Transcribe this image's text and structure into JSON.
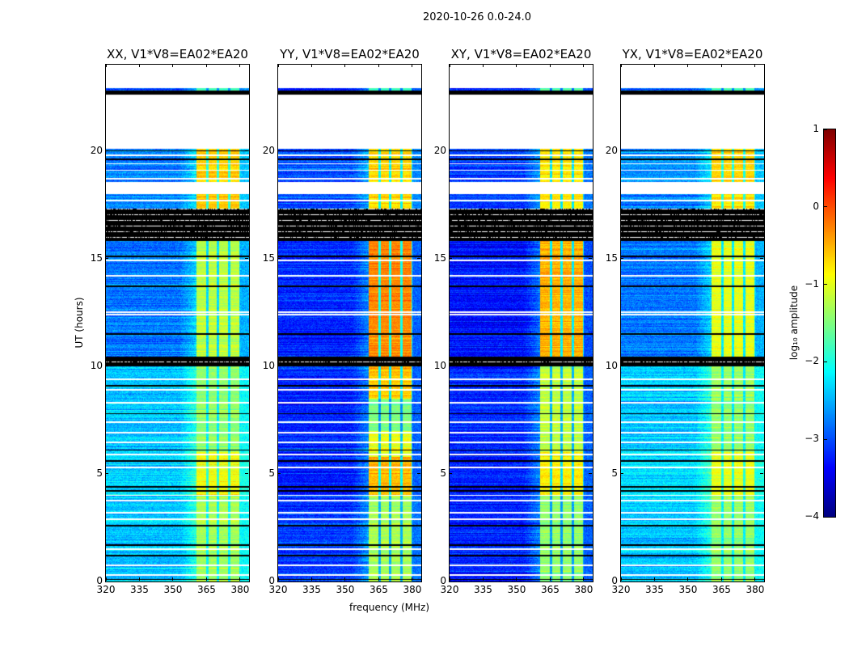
{
  "chart_data": {
    "type": "heatmap",
    "title": "2020-10-26 0.0-24.0",
    "xlabel": "frequency (MHz)",
    "ylabel": "UT (hours)",
    "xlim": [
      320,
      384
    ],
    "ylim": [
      0,
      24
    ],
    "xticks": [
      320,
      335,
      350,
      365,
      380
    ],
    "yticks": [
      0,
      5,
      10,
      15,
      20
    ],
    "colorbar": {
      "label": "log₁₀ amplitude",
      "range": [
        -4,
        1
      ],
      "ticks": [
        1,
        0,
        -1,
        -2,
        -3,
        -4
      ],
      "tick_labels": [
        "1",
        "0",
        "−1",
        "−2",
        "−3",
        "−4"
      ],
      "colormap": "jet"
    },
    "rfi_bands_mhz": [
      [
        360.5,
        364.8
      ],
      [
        365.9,
        369.5
      ],
      [
        370.6,
        374.6
      ],
      [
        375.6,
        379.6
      ]
    ],
    "time_segments": [
      [
        0,
        10.0,
        "data"
      ],
      [
        10.0,
        10.45,
        "flag"
      ],
      [
        10.45,
        15.8,
        "data"
      ],
      [
        15.8,
        17.3,
        "flag"
      ],
      [
        17.3,
        18.0,
        "data"
      ],
      [
        18.0,
        18.55,
        "gap"
      ],
      [
        18.55,
        20.1,
        "data"
      ],
      [
        20.1,
        22.6,
        "gap"
      ],
      [
        22.6,
        22.8,
        "flag"
      ],
      [
        22.8,
        22.9,
        "data"
      ],
      [
        22.9,
        24,
        "gap"
      ]
    ],
    "white_line_hours": [
      0.3,
      0.75,
      1.5,
      2.9,
      3.2,
      3.75,
      4.0,
      5.3,
      5.9,
      6.45,
      6.9,
      7.4,
      8.3,
      8.9,
      9.4,
      12.4,
      12.5,
      14.2,
      14.9,
      16.0,
      16.6,
      17.05,
      17.7,
      18.7,
      19.1,
      19.4,
      19.8
    ],
    "black_line_hours": [
      0.1,
      1.2,
      1.7,
      2.6,
      4.2,
      4.4,
      5.6,
      6.1,
      7.8,
      9.1,
      11.5,
      13.7,
      15.1,
      19.6,
      20.0
    ],
    "panels": [
      {
        "title": "XX, V1*V8=EA02*EA20",
        "levels": [
          [
            0,
            4,
            -2.4,
            -1.3
          ],
          [
            4,
            6,
            -2.3,
            -0.9
          ],
          [
            6,
            10.3,
            -2.4,
            -1.4
          ],
          [
            10.3,
            15.8,
            -2.8,
            -1.2
          ],
          [
            15.8,
            20.2,
            -2.7,
            -0.6
          ],
          [
            20.2,
            24,
            -3.0,
            -1.8
          ]
        ]
      },
      {
        "title": "YY, V1*V8=EA02*EA20",
        "levels": [
          [
            0,
            4,
            -3.1,
            -1.3
          ],
          [
            4,
            5.8,
            -3.2,
            -0.5
          ],
          [
            5.8,
            7,
            -3.2,
            -1.0
          ],
          [
            7,
            8.5,
            -3.2,
            -1.5
          ],
          [
            8.5,
            10.3,
            -3.2,
            -0.6
          ],
          [
            10.3,
            15.8,
            -3.2,
            -0.3
          ],
          [
            15.8,
            20.2,
            -3.0,
            -0.7
          ],
          [
            20.2,
            24,
            -3.2,
            -1.8
          ]
        ]
      },
      {
        "title": "XY, V1*V8=EA02*EA20",
        "levels": [
          [
            0,
            4,
            -3.2,
            -1.4
          ],
          [
            4,
            6,
            -3.2,
            -0.8
          ],
          [
            6,
            10.3,
            -3.2,
            -1.2
          ],
          [
            10.3,
            15.8,
            -3.3,
            -0.5
          ],
          [
            15.8,
            20.2,
            -3.1,
            -0.8
          ],
          [
            20.2,
            24,
            -3.3,
            -1.8
          ]
        ]
      },
      {
        "title": "YX, V1*V8=EA02*EA20",
        "levels": [
          [
            0,
            4,
            -2.4,
            -1.4
          ],
          [
            4,
            6,
            -2.3,
            -1.0
          ],
          [
            6,
            10.3,
            -2.4,
            -1.4
          ],
          [
            10.3,
            15.8,
            -2.8,
            -1.0
          ],
          [
            15.8,
            20.2,
            -2.7,
            -0.7
          ],
          [
            20.2,
            24,
            -3.0,
            -1.8
          ]
        ]
      }
    ]
  }
}
